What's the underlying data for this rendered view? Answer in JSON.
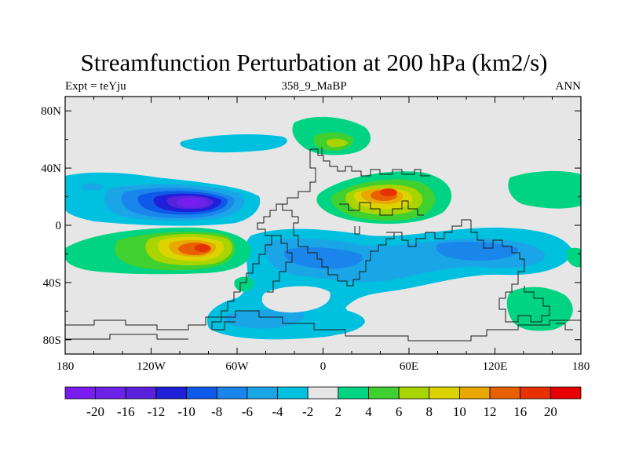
{
  "title": "Streamfunction Perturbation at 200 hPa (km2/s)",
  "left_string": "Expt = teYju",
  "center_string": "358_9_MaBP",
  "right_string": "ANN",
  "x_ticks": [
    {
      "label": "180",
      "lon": -180
    },
    {
      "label": "120W",
      "lon": -120
    },
    {
      "label": "60W",
      "lon": -60
    },
    {
      "label": "0",
      "lon": 0
    },
    {
      "label": "60E",
      "lon": 60
    },
    {
      "label": "120E",
      "lon": 120
    },
    {
      "label": "180",
      "lon": 180
    }
  ],
  "y_ticks": [
    {
      "label": "80N",
      "lat": 80
    },
    {
      "label": "40N",
      "lat": 40
    },
    {
      "label": "0",
      "lat": 0
    },
    {
      "label": "40S",
      "lat": -40
    },
    {
      "label": "80S",
      "lat": -80
    }
  ],
  "colorbar": {
    "colors": [
      "#7a1cf0",
      "#6c22e8",
      "#5a22dc",
      "#2020d8",
      "#0d5ae8",
      "#1a86ec",
      "#1aa6e6",
      "#00c0e0",
      "#e6e6e6",
      "#00d483",
      "#40d030",
      "#a8d400",
      "#dcd400",
      "#e8a800",
      "#e86000",
      "#e83000",
      "#e80000"
    ],
    "labels": [
      "-20",
      "-16",
      "-12",
      "-10",
      "-8",
      "-6",
      "-4",
      "-2",
      "2",
      "4",
      "6",
      "8",
      "10",
      "12",
      "16",
      "20"
    ]
  },
  "field": {
    "background": "#e6e6e6",
    "land_stroke": "#1a1a1a"
  }
}
